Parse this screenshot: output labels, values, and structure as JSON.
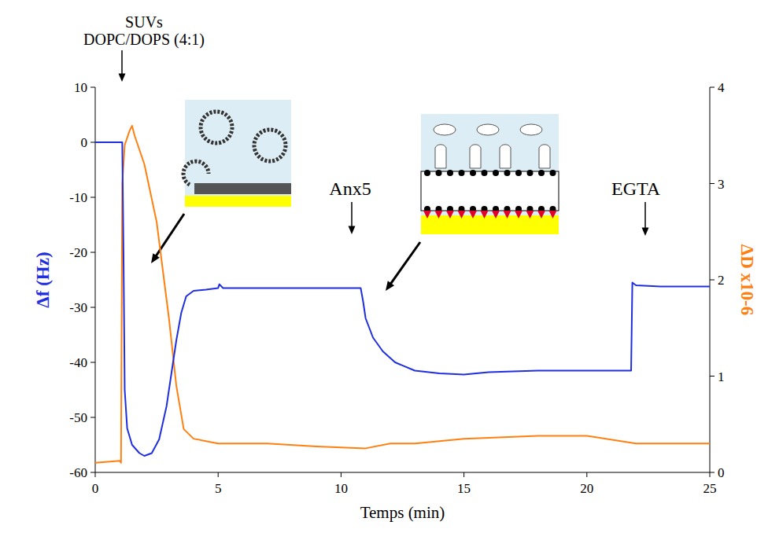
{
  "chart_data": {
    "type": "line",
    "x_label": "Temps (min)",
    "y_label": "Δf (Hz)",
    "y2_label": "ΔD x10-6",
    "annotations": [
      "SUVs",
      "DOPC/DOPS (4:1)",
      "Anx5",
      "EGTA"
    ],
    "xlim": [
      0,
      25
    ],
    "xticks": [
      0,
      5,
      10,
      15,
      20,
      25
    ],
    "ylim": [
      -60,
      10
    ],
    "yticks": [
      -60,
      -50,
      -40,
      -30,
      -20,
      -10,
      0,
      10
    ],
    "y2lim": [
      0,
      4
    ],
    "y2ticks": [
      0,
      1,
      2,
      3,
      4
    ],
    "grid": false,
    "series": [
      {
        "name": "Δf",
        "color": "#1f2fe0",
        "axis": "y",
        "x": [
          0,
          1.1,
          1.15,
          1.2,
          1.3,
          1.5,
          1.8,
          2.0,
          2.3,
          2.6,
          2.9,
          3.1,
          3.3,
          3.5,
          3.7,
          4.0,
          4.5,
          5.0,
          5.05,
          5.2,
          6,
          8,
          10,
          10.8,
          10.9,
          11.0,
          11.3,
          11.7,
          12.2,
          13,
          14,
          15,
          16,
          18,
          20,
          21.8,
          21.85,
          22,
          23,
          25
        ],
        "values": [
          0,
          0,
          -20,
          -45,
          -52,
          -55,
          -56.5,
          -57,
          -56.5,
          -54,
          -48,
          -42,
          -36,
          -31,
          -28,
          -27,
          -26.8,
          -26.5,
          -25.8,
          -26.5,
          -26.5,
          -26.5,
          -26.5,
          -26.5,
          -29,
          -32,
          -35.5,
          -38,
          -40,
          -41.5,
          -42,
          -42.2,
          -41.8,
          -41.5,
          -41.5,
          -41.5,
          -25.5,
          -26,
          -26.2,
          -26.2
        ]
      },
      {
        "name": "ΔD",
        "color": "#ff8010",
        "axis": "y2",
        "x": [
          0,
          1.0,
          1.05,
          1.1,
          1.2,
          1.4,
          1.5,
          1.6,
          2.0,
          2.5,
          3.0,
          3.3,
          3.6,
          4.0,
          5,
          7,
          9,
          11,
          12,
          13,
          15,
          18,
          20,
          22,
          25
        ],
        "values": [
          0.1,
          0.12,
          0.1,
          3.0,
          3.4,
          3.55,
          3.6,
          3.5,
          3.2,
          2.6,
          1.6,
          0.9,
          0.45,
          0.35,
          0.3,
          0.3,
          0.27,
          0.25,
          0.3,
          0.3,
          0.35,
          0.38,
          0.38,
          0.3,
          0.3
        ]
      }
    ]
  }
}
